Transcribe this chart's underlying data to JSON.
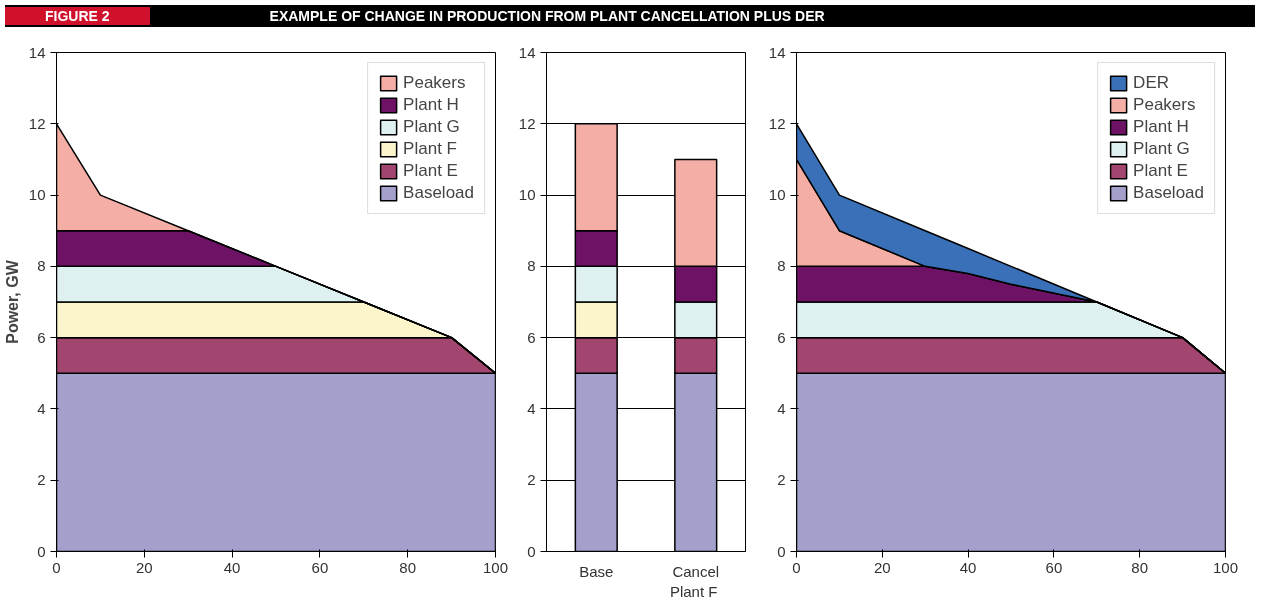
{
  "chart_data": [
    {
      "type": "area",
      "title": "EXAMPLE OF CHANGE IN PRODUCTION FROM PLANT CANCELLATION PLUS DER",
      "annotations": [
        "FIGURE 2"
      ],
      "ylabel": "Power, GW",
      "stacked": true,
      "x": [
        0,
        10,
        30,
        50,
        70,
        90,
        100
      ],
      "xlim": [
        0,
        100
      ],
      "xticks": [
        0,
        20,
        40,
        60,
        80,
        100
      ],
      "ylim": [
        0,
        14
      ],
      "yticks": [
        0,
        2,
        4,
        6,
        8,
        10,
        12,
        14
      ],
      "grid": false,
      "legend": "top right",
      "series": [
        {
          "name": "Baseload",
          "color": "#a3a1cc",
          "values": [
            5,
            5,
            5,
            5,
            5,
            5,
            5
          ]
        },
        {
          "name": "Plant E",
          "color": "#a3466f",
          "values": [
            1,
            1,
            1,
            1,
            1,
            1,
            0
          ]
        },
        {
          "name": "Plant F",
          "color": "#fcf5cc",
          "values": [
            1,
            1,
            1,
            1,
            1,
            0,
            0
          ]
        },
        {
          "name": "Plant G",
          "color": "#dff0f0",
          "values": [
            1,
            1,
            1,
            1,
            0,
            0,
            0
          ]
        },
        {
          "name": "Plant H",
          "color": "#6e1266",
          "values": [
            1,
            1,
            1,
            0,
            0,
            0,
            0
          ]
        },
        {
          "name": "Peakers",
          "color": "#f4aea5",
          "values": [
            3,
            1,
            0,
            0,
            0,
            0,
            0
          ]
        }
      ]
    },
    {
      "type": "bar",
      "stacked": true,
      "categories": [
        "Base",
        "Cancel\nPlant  F"
      ],
      "ylim": [
        0,
        14
      ],
      "yticks": [
        0,
        2,
        4,
        6,
        8,
        10,
        12,
        14
      ],
      "grid": "y",
      "legend": false,
      "series": [
        {
          "color": "#a3a1cc",
          "values": [
            5,
            5
          ]
        },
        {
          "color": "#a3466f",
          "values": [
            1,
            1
          ]
        },
        {
          "color": "#fcf5cc",
          "values": [
            1,
            null
          ]
        },
        {
          "color": "#dff0f0",
          "values": [
            1,
            1
          ]
        },
        {
          "color": "#6e1266",
          "values": [
            1,
            1
          ]
        },
        {
          "color": "#f4aea5",
          "values": [
            3,
            3
          ]
        }
      ]
    },
    {
      "type": "area",
      "stacked": true,
      "x": [
        0,
        10,
        30,
        40,
        50,
        70,
        90,
        100
      ],
      "xlim": [
        0,
        100
      ],
      "xticks": [
        0,
        20,
        40,
        60,
        80,
        100
      ],
      "ylim": [
        0,
        14
      ],
      "yticks": [
        0,
        2,
        4,
        6,
        8,
        10,
        12,
        14
      ],
      "grid": false,
      "legend": "top right",
      "series": [
        {
          "name": "Baseload",
          "color": "#a3a1cc",
          "values": [
            5,
            5,
            5,
            5,
            5,
            5,
            5,
            5
          ]
        },
        {
          "name": "Plant E",
          "color": "#a3466f",
          "values": [
            1,
            1,
            1,
            1,
            1,
            1,
            1,
            0
          ]
        },
        {
          "name": "Plant G",
          "color": "#dff0f0",
          "values": [
            1,
            1,
            1,
            1,
            1,
            1,
            0,
            0
          ]
        },
        {
          "name": "Plant H",
          "color": "#6e1266",
          "values": [
            1,
            1,
            1,
            0.8,
            0.5,
            0,
            0,
            0
          ]
        },
        {
          "name": "Peakers",
          "color": "#f4aea5",
          "values": [
            3,
            1,
            0,
            0,
            0,
            0,
            0,
            0
          ]
        },
        {
          "name": "DER",
          "color": "#3a70b8",
          "values": [
            1,
            1,
            1,
            0.7,
            0.5,
            0,
            0,
            0
          ]
        }
      ]
    }
  ]
}
